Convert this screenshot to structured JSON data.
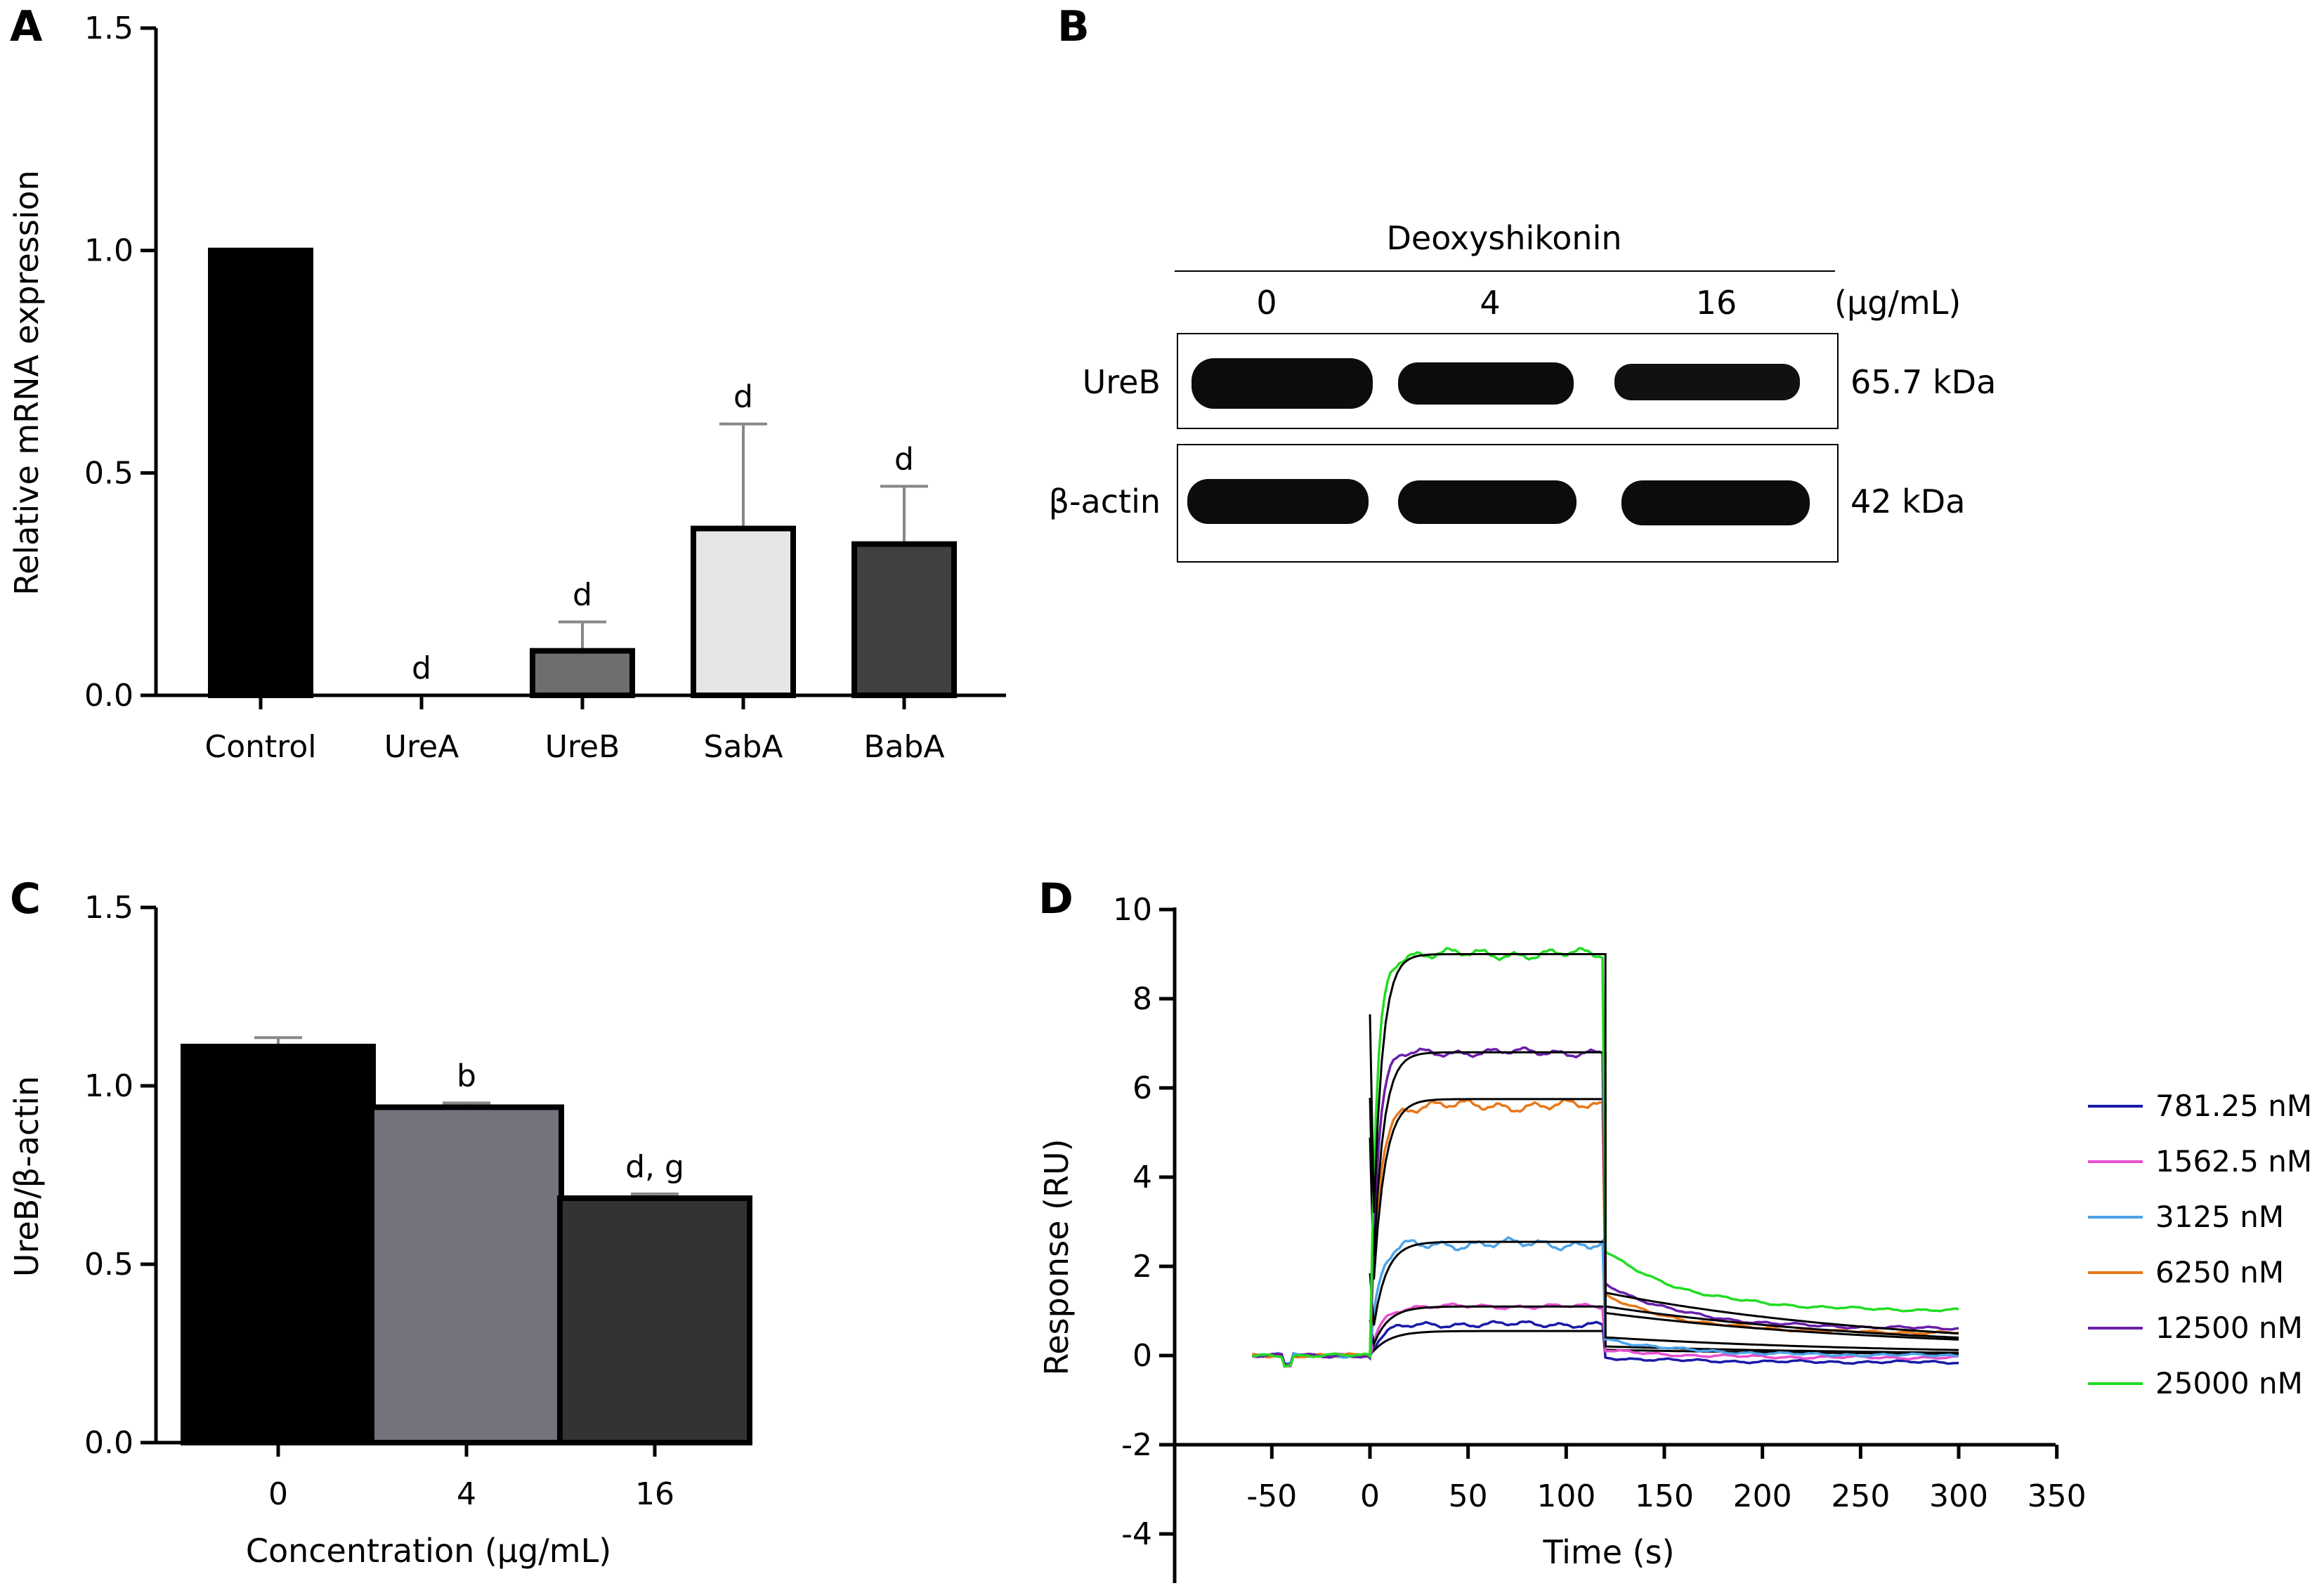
{
  "chart_data": [
    {
      "panel": "A",
      "type": "bar",
      "categories": [
        "Control",
        "UreA",
        "UreB",
        "SabA",
        "BabA"
      ],
      "values": [
        1.0,
        0.0,
        0.1,
        0.375,
        0.34
      ],
      "error": [
        0,
        0,
        0.065,
        0.235,
        0.13
      ],
      "annotations": [
        "",
        "d",
        "d",
        "d",
        "d"
      ],
      "colors": [
        "#000000",
        "#000000",
        "#6e6e6e",
        "#e6e6e6",
        "#404040"
      ],
      "ylabel": "Relative mRNA expression",
      "yticks": [
        "0.0",
        "0.5",
        "1.0",
        "1.5"
      ],
      "ylim": [
        0,
        1.5
      ]
    },
    {
      "panel": "C",
      "type": "bar",
      "categories": [
        "0",
        "4",
        "16"
      ],
      "values": [
        1.11,
        0.94,
        0.685
      ],
      "error": [
        0.025,
        0.012,
        0.012
      ],
      "annotations": [
        "",
        "b",
        "d, g"
      ],
      "colors": [
        "#000000",
        "#72737c",
        "#333333"
      ],
      "ylabel": "UreB/β-actin",
      "xlabel": "Concentration (μg/mL)",
      "yticks": [
        "0.0",
        "0.5",
        "1.0",
        "1.5"
      ],
      "ylim": [
        0,
        1.5
      ]
    },
    {
      "panel": "D",
      "type": "line",
      "xlabel": "Time (s)",
      "ylabel": "Response (RU)",
      "xticks": [
        "-50",
        "0",
        "50",
        "100",
        "150",
        "200",
        "250",
        "300",
        "350"
      ],
      "yticks": [
        "-4",
        "-2",
        "0",
        "2",
        "4",
        "6",
        "8",
        "10"
      ],
      "xlim": [
        -60,
        350
      ],
      "ylim": [
        -4,
        10
      ],
      "association_start": 0,
      "dissociation_start": 120,
      "end": 300,
      "legend_position": "right",
      "series": [
        {
          "name": "781.25 nM",
          "color": "#1a1aa8",
          "plateau": 0.7,
          "end": -0.15
        },
        {
          "name": "1562.5 nM",
          "color": "#e84fd0",
          "plateau": 1.1,
          "end": -0.05
        },
        {
          "name": "3125 nM",
          "color": "#4da3e8",
          "plateau": 2.5,
          "end": 0.0
        },
        {
          "name": "6250 nM",
          "color": "#e8781a",
          "plateau": 5.6,
          "end": 0.5
        },
        {
          "name": "12500 nM",
          "color": "#6a1fa8",
          "plateau": 6.8,
          "end": 0.6
        },
        {
          "name": "25000 nM",
          "color": "#22dd22",
          "plateau": 9.0,
          "end": 1.0
        }
      ],
      "fit_color": "#000000"
    }
  ],
  "panels": {
    "a": {
      "letter": "A"
    },
    "b": {
      "letter": "B",
      "header": "Deoxyshikonin",
      "concentrations": [
        "0",
        "4",
        "16"
      ],
      "unit": "(μg/mL)",
      "rows": [
        {
          "label": "UreB",
          "size": "65.7 kDa"
        },
        {
          "label": "β-actin",
          "size": "42 kDa"
        }
      ]
    },
    "c": {
      "letter": "C"
    },
    "d": {
      "letter": "D"
    }
  }
}
